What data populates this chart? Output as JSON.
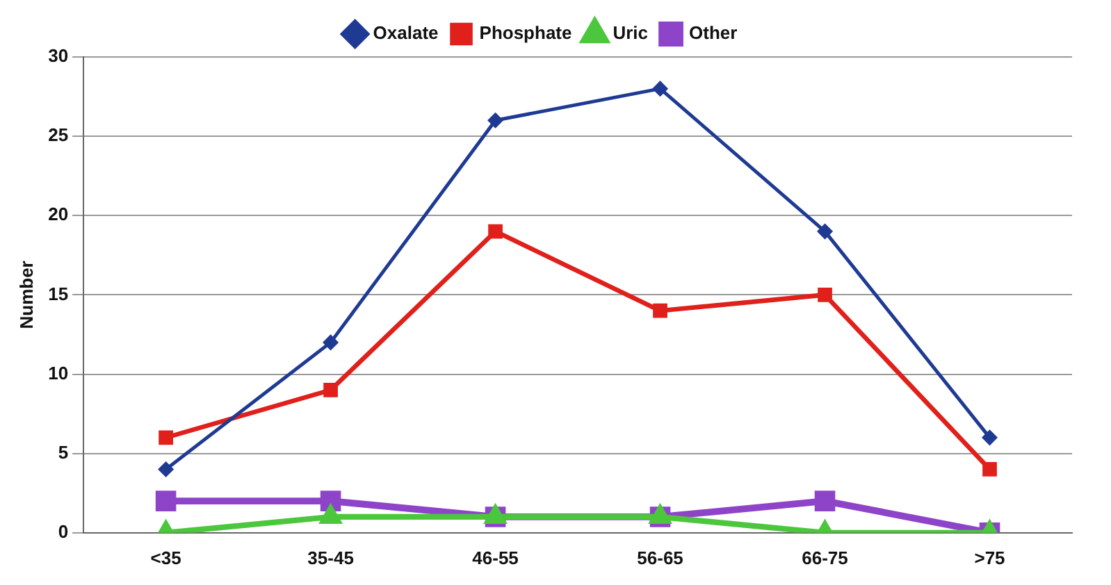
{
  "chart_data": {
    "type": "line",
    "ylabel": "Number",
    "categories": [
      "<35",
      "35-45",
      "46-55",
      "56-65",
      "66-75",
      ">75"
    ],
    "series": [
      {
        "name": "Oxalate",
        "color": "#1f3a93",
        "marker": "diamond",
        "values": [
          4,
          12,
          26,
          28,
          19,
          6
        ]
      },
      {
        "name": "Phosphate",
        "color": "#e0201b",
        "marker": "square",
        "values": [
          6,
          9,
          19,
          14,
          15,
          4
        ]
      },
      {
        "name": "Uric",
        "color": "#4cc63c",
        "marker": "triangle",
        "values": [
          0,
          1,
          1,
          1,
          0,
          0
        ]
      },
      {
        "name": "Other",
        "color": "#8e44c8",
        "marker": "square",
        "values": [
          2,
          2,
          1,
          1,
          2,
          0
        ]
      }
    ],
    "ylim": [
      0,
      30
    ],
    "yticks": [
      0,
      5,
      10,
      15,
      20,
      25,
      30
    ],
    "grid": "y",
    "legend": "top",
    "line_style": "solid"
  }
}
